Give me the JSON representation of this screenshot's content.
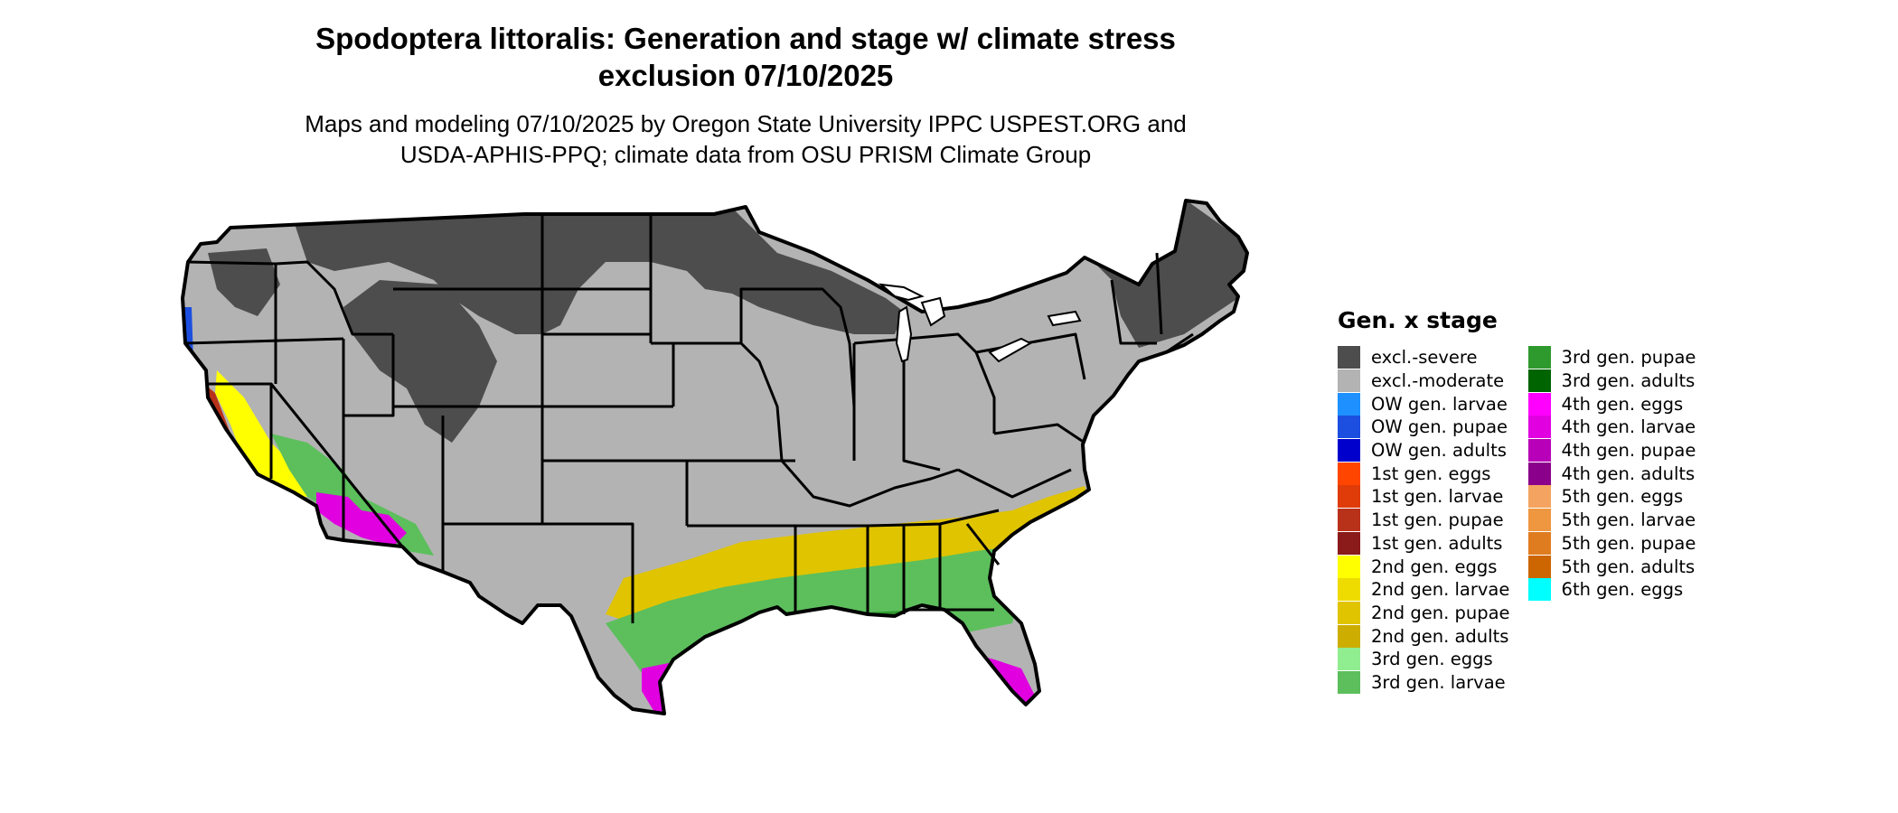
{
  "title_lines": [
    "Spodoptera littoralis: Generation and stage w/ climate stress",
    "exclusion 07/10/2025"
  ],
  "subtitle_lines": [
    "Maps and modeling 07/10/2025 by Oregon State University IPPC USPEST.ORG and",
    "USDA-APHIS-PPQ; climate data from OSU PRISM Climate Group"
  ],
  "legend": {
    "title": "Gen. x stage",
    "columns": [
      [
        {
          "label": "excl.-severe",
          "color": "#4d4d4d"
        },
        {
          "label": "excl.-moderate",
          "color": "#b3b3b3"
        },
        {
          "label": "OW gen. larvae",
          "color": "#1e90ff"
        },
        {
          "label": "OW gen. pupae",
          "color": "#1c4fe0"
        },
        {
          "label": "OW gen. adults",
          "color": "#0000cd"
        },
        {
          "label": "1st gen. eggs",
          "color": "#ff4500"
        },
        {
          "label": "1st gen. larvae",
          "color": "#e03c0a"
        },
        {
          "label": "1st gen. pupae",
          "color": "#b8321a"
        },
        {
          "label": "1st gen. adults",
          "color": "#8b1a1a"
        },
        {
          "label": "2nd gen. eggs",
          "color": "#ffff00"
        },
        {
          "label": "2nd gen. larvae",
          "color": "#eedc00"
        },
        {
          "label": "2nd gen. pupae",
          "color": "#e0c400"
        },
        {
          "label": "2nd gen. adults",
          "color": "#cdad00"
        },
        {
          "label": "3rd gen. eggs",
          "color": "#90ee90"
        },
        {
          "label": "3rd gen. larvae",
          "color": "#5cbf5c"
        }
      ],
      [
        {
          "label": "3rd gen. pupae",
          "color": "#2e9a2e"
        },
        {
          "label": "3rd gen. adults",
          "color": "#006400"
        },
        {
          "label": "4th gen. eggs",
          "color": "#ff00ff"
        },
        {
          "label": "4th gen. larvae",
          "color": "#e000e0"
        },
        {
          "label": "4th gen. pupae",
          "color": "#b800b8"
        },
        {
          "label": "4th gen. adults",
          "color": "#8b008b"
        },
        {
          "label": "5th gen. eggs",
          "color": "#f4a460"
        },
        {
          "label": "5th gen. larvae",
          "color": "#ee9640"
        },
        {
          "label": "5th gen. pupae",
          "color": "#e07c20"
        },
        {
          "label": "5th gen. adults",
          "color": "#cd6600"
        },
        {
          "label": "6th gen. eggs",
          "color": "#00ffff"
        }
      ]
    ]
  }
}
